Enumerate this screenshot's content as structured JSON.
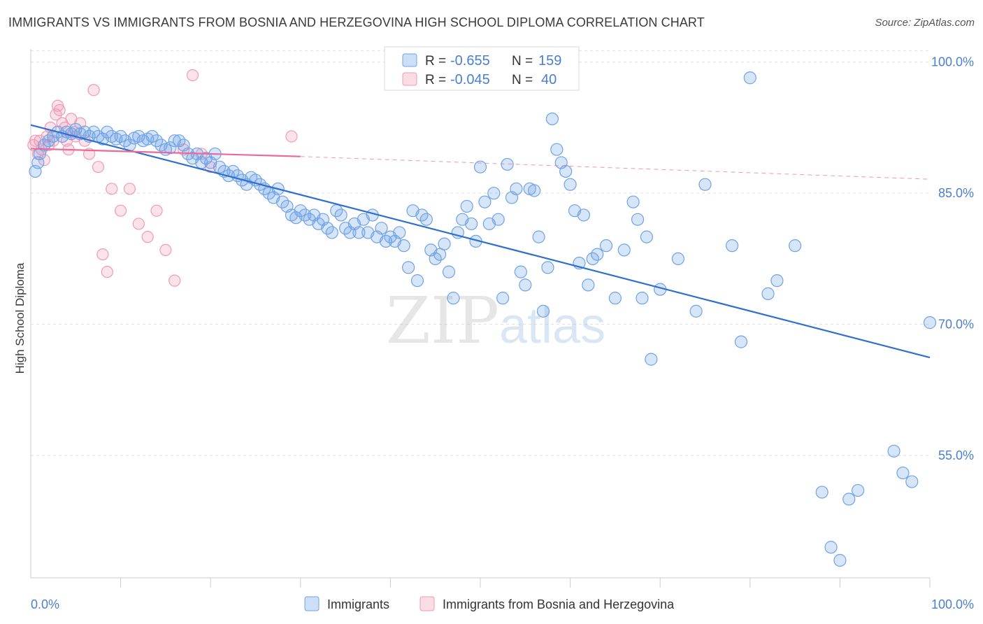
{
  "header": {
    "title": "IMMIGRANTS VS IMMIGRANTS FROM BOSNIA AND HERZEGOVINA HIGH SCHOOL DIPLOMA CORRELATION CHART",
    "source": "Source: ZipAtlas.com"
  },
  "watermark": {
    "zip": "ZIP",
    "atlas": "atlas"
  },
  "legend_box": {
    "rows": [
      {
        "r_label": "R =",
        "r_value": "-0.655",
        "n_label": "N =",
        "n_value": "159",
        "color": "#6fa3e6"
      },
      {
        "r_label": "R =",
        "r_value": "-0.045",
        "n_label": "N =",
        "n_value": "40",
        "color": "#f09ab5"
      }
    ]
  },
  "colors": {
    "blue": "#6fa3e6",
    "blue_fill": "rgba(111,163,230,0.28)",
    "blue_line": "#2f6fcf",
    "pink": "#f09ab5",
    "pink_fill": "rgba(240,154,181,0.28)",
    "pink_line": "#e8699a",
    "tick_text": "#4a7fd0"
  },
  "chart_data": {
    "type": "scatter",
    "title": "IMMIGRANTS VS IMMIGRANTS FROM BOSNIA AND HERZEGOVINA HIGH SCHOOL DIPLOMA CORRELATION CHART",
    "ylabel": "High School Diploma",
    "xlabel": "",
    "xlim": [
      0,
      100
    ],
    "ylim": [
      41,
      101.5
    ],
    "x_tick_labels": [
      "0.0%",
      "100.0%"
    ],
    "y_ticks": [
      55,
      70,
      85,
      100
    ],
    "y_tick_labels": [
      "55.0%",
      "70.0%",
      "85.0%",
      "100.0%"
    ],
    "grid": true,
    "legend_placement": "bottom",
    "series": [
      {
        "name": "Immigrants",
        "color": "#6fa3e6",
        "trend": {
          "x": [
            0,
            100
          ],
          "y": [
            92.8,
            66.2
          ]
        },
        "points": [
          [
            0.5,
            87.5
          ],
          [
            0.8,
            88.5
          ],
          [
            1,
            89.5
          ],
          [
            1.5,
            90.5
          ],
          [
            2,
            91
          ],
          [
            2.5,
            91.5
          ],
          [
            3,
            92
          ],
          [
            3.5,
            91.5
          ],
          [
            4,
            92
          ],
          [
            4.5,
            91.8
          ],
          [
            5,
            92.3
          ],
          [
            5.5,
            91.8
          ],
          [
            6,
            92
          ],
          [
            6.5,
            91.5
          ],
          [
            7,
            92
          ],
          [
            7.5,
            91.5
          ],
          [
            8,
            91.2
          ],
          [
            8.5,
            92
          ],
          [
            9,
            91.5
          ],
          [
            9.5,
            91.2
          ],
          [
            10,
            91.5
          ],
          [
            10.5,
            91
          ],
          [
            11,
            90.5
          ],
          [
            11.5,
            91.3
          ],
          [
            12,
            91.5
          ],
          [
            12.5,
            91
          ],
          [
            13,
            91.2
          ],
          [
            13.5,
            91.5
          ],
          [
            14,
            91
          ],
          [
            14.5,
            90.5
          ],
          [
            15,
            90
          ],
          [
            15.5,
            90.2
          ],
          [
            16,
            91
          ],
          [
            16.5,
            91
          ],
          [
            17,
            90.5
          ],
          [
            17.5,
            89.5
          ],
          [
            18,
            89
          ],
          [
            18.5,
            89.5
          ],
          [
            19,
            88.5
          ],
          [
            19.5,
            89
          ],
          [
            20,
            88.5
          ],
          [
            20.5,
            89.5
          ],
          [
            21,
            88
          ],
          [
            21.5,
            87.5
          ],
          [
            22,
            87
          ],
          [
            22.5,
            87.5
          ],
          [
            23,
            87
          ],
          [
            23.5,
            86.5
          ],
          [
            24,
            86
          ],
          [
            24.5,
            86.8
          ],
          [
            25,
            86.5
          ],
          [
            25.5,
            86
          ],
          [
            26,
            85.5
          ],
          [
            26.5,
            85
          ],
          [
            27,
            84.5
          ],
          [
            27.5,
            85.5
          ],
          [
            28,
            84
          ],
          [
            28.5,
            83.5
          ],
          [
            29,
            82.5
          ],
          [
            29.5,
            82.2
          ],
          [
            30,
            83
          ],
          [
            30.5,
            82.5
          ],
          [
            31,
            82
          ],
          [
            31.5,
            82.5
          ],
          [
            32,
            81.5
          ],
          [
            32.5,
            82
          ],
          [
            33,
            81
          ],
          [
            33.5,
            80.5
          ],
          [
            34,
            83
          ],
          [
            34.5,
            82.5
          ],
          [
            35,
            81
          ],
          [
            35.5,
            80.5
          ],
          [
            36,
            81.5
          ],
          [
            36.5,
            80.5
          ],
          [
            37,
            82
          ],
          [
            37.5,
            80.5
          ],
          [
            38,
            82.5
          ],
          [
            38.5,
            80
          ],
          [
            39,
            81
          ],
          [
            39.5,
            79.5
          ],
          [
            40,
            80
          ],
          [
            40.5,
            79.5
          ],
          [
            41,
            80.5
          ],
          [
            41.5,
            79
          ],
          [
            42,
            76.5
          ],
          [
            42.5,
            83
          ],
          [
            43,
            75
          ],
          [
            43.5,
            82.5
          ],
          [
            44,
            82
          ],
          [
            44.5,
            78.5
          ],
          [
            45,
            77.5
          ],
          [
            45.5,
            78
          ],
          [
            46,
            79.2
          ],
          [
            46.5,
            76
          ],
          [
            47,
            73
          ],
          [
            47.5,
            80.5
          ],
          [
            48,
            82
          ],
          [
            48.5,
            83.5
          ],
          [
            49,
            81.5
          ],
          [
            49.5,
            79.5
          ],
          [
            50,
            88
          ],
          [
            50.5,
            84
          ],
          [
            51,
            81.5
          ],
          [
            51.5,
            85
          ],
          [
            52,
            82
          ],
          [
            52.5,
            73
          ],
          [
            53,
            88.3
          ],
          [
            53.5,
            84.5
          ],
          [
            54,
            85.5
          ],
          [
            54.5,
            76
          ],
          [
            55,
            74.5
          ],
          [
            55.5,
            85.5
          ],
          [
            56,
            85.3
          ],
          [
            56.5,
            80
          ],
          [
            57,
            71.5
          ],
          [
            57.5,
            76.5
          ],
          [
            58,
            93.5
          ],
          [
            58.5,
            90
          ],
          [
            59,
            88.5
          ],
          [
            59.5,
            87.5
          ],
          [
            60,
            86
          ],
          [
            60.5,
            83
          ],
          [
            61,
            77
          ],
          [
            61.5,
            82.5
          ],
          [
            62,
            74.5
          ],
          [
            62.5,
            77.5
          ],
          [
            63,
            78
          ],
          [
            64,
            79
          ],
          [
            65,
            73
          ],
          [
            66,
            78.5
          ],
          [
            67,
            84
          ],
          [
            67.5,
            82
          ],
          [
            68,
            73
          ],
          [
            68.5,
            80
          ],
          [
            69,
            66
          ],
          [
            70,
            74
          ],
          [
            72,
            77.5
          ],
          [
            74,
            71.5
          ],
          [
            75,
            86
          ],
          [
            78,
            79
          ],
          [
            79,
            68
          ],
          [
            80,
            98.2
          ],
          [
            82,
            73.5
          ],
          [
            83,
            75
          ],
          [
            85,
            79
          ],
          [
            88,
            50.8
          ],
          [
            89,
            44.5
          ],
          [
            90,
            43
          ],
          [
            91,
            50
          ],
          [
            92,
            51
          ],
          [
            97,
            53
          ],
          [
            98,
            52
          ],
          [
            100,
            70.2
          ],
          [
            96,
            55.5
          ]
        ]
      },
      {
        "name": "Immigrants from Bosnia and Herzegovina",
        "color": "#f09ab5",
        "trend": {
          "x": [
            0,
            30
          ],
          "y": [
            90.1,
            89.2
          ]
        },
        "trend_dashed": {
          "x": [
            30,
            100
          ],
          "y": [
            89.2,
            86.6
          ]
        },
        "points": [
          [
            0.3,
            90.5
          ],
          [
            0.5,
            91
          ],
          [
            0.8,
            89.5
          ],
          [
            1,
            91
          ],
          [
            1.2,
            90
          ],
          [
            1.5,
            88.8
          ],
          [
            1.8,
            91.5
          ],
          [
            2,
            90.5
          ],
          [
            2.2,
            92.5
          ],
          [
            2.5,
            91
          ],
          [
            2.8,
            94
          ],
          [
            3,
            95
          ],
          [
            3.2,
            94.5
          ],
          [
            3.5,
            93
          ],
          [
            3.8,
            92.5
          ],
          [
            4,
            91
          ],
          [
            4.2,
            90
          ],
          [
            4.5,
            93.5
          ],
          [
            4.8,
            92
          ],
          [
            5,
            91.5
          ],
          [
            5.5,
            93
          ],
          [
            6,
            91
          ],
          [
            6.5,
            89.5
          ],
          [
            7,
            96.8
          ],
          [
            7.5,
            88
          ],
          [
            8,
            78
          ],
          [
            8.5,
            76
          ],
          [
            9,
            85.5
          ],
          [
            10,
            83
          ],
          [
            11,
            85.5
          ],
          [
            12,
            81.5
          ],
          [
            13,
            80
          ],
          [
            14,
            83
          ],
          [
            15,
            78.5
          ],
          [
            16,
            75
          ],
          [
            17,
            90
          ],
          [
            18,
            98.5
          ],
          [
            19,
            89.5
          ],
          [
            20,
            88
          ],
          [
            29,
            91.5
          ]
        ]
      }
    ]
  },
  "bottom_legend": {
    "items": [
      {
        "label": "Immigrants",
        "color": "#6fa3e6"
      },
      {
        "label": "Immigrants from Bosnia and Herzegovina",
        "color": "#f09ab5"
      }
    ]
  }
}
